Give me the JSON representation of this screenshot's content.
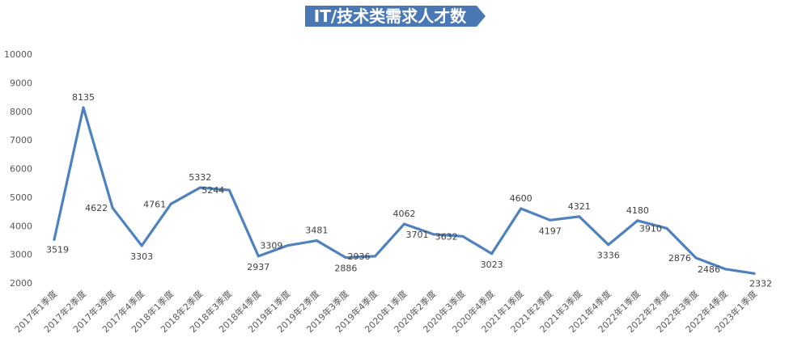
{
  "chart_data": {
    "type": "line",
    "title": "IT/技术类需求人才数",
    "xlabel": "",
    "ylabel": "",
    "ylim": [
      2000,
      10000
    ],
    "yticks": [
      2000,
      3000,
      4000,
      5000,
      6000,
      7000,
      8000,
      9000,
      10000
    ],
    "grid": false,
    "legend": "none",
    "categories": [
      "2017年1季度",
      "2017年2季度",
      "2017年3季度",
      "2017年4季度",
      "2018年1季度",
      "2018年2季度",
      "2018年3季度",
      "2018年4季度",
      "2019年1季度",
      "2019年2季度",
      "2019年3季度",
      "2019年4季度",
      "2020年1季度",
      "2020年2季度",
      "2020年3季度",
      "2020年4季度",
      "2021年1季度",
      "2021年2季度",
      "2021年3季度",
      "2021年4季度",
      "2022年1季度",
      "2022年2季度",
      "2022年3季度",
      "2022年4季度",
      "2023年1季度"
    ],
    "series": [
      {
        "values": [
          3519,
          8135,
          4622,
          3303,
          4761,
          5332,
          5244,
          2937,
          3309,
          3481,
          2886,
          2936,
          4062,
          3701,
          3632,
          3023,
          4600,
          4197,
          4321,
          3336,
          4180,
          3910,
          2876,
          2486,
          2332
        ]
      }
    ],
    "colors": {
      "line": "#4f81bd",
      "title_bg": "#4a78b5",
      "text": "#595959"
    }
  }
}
